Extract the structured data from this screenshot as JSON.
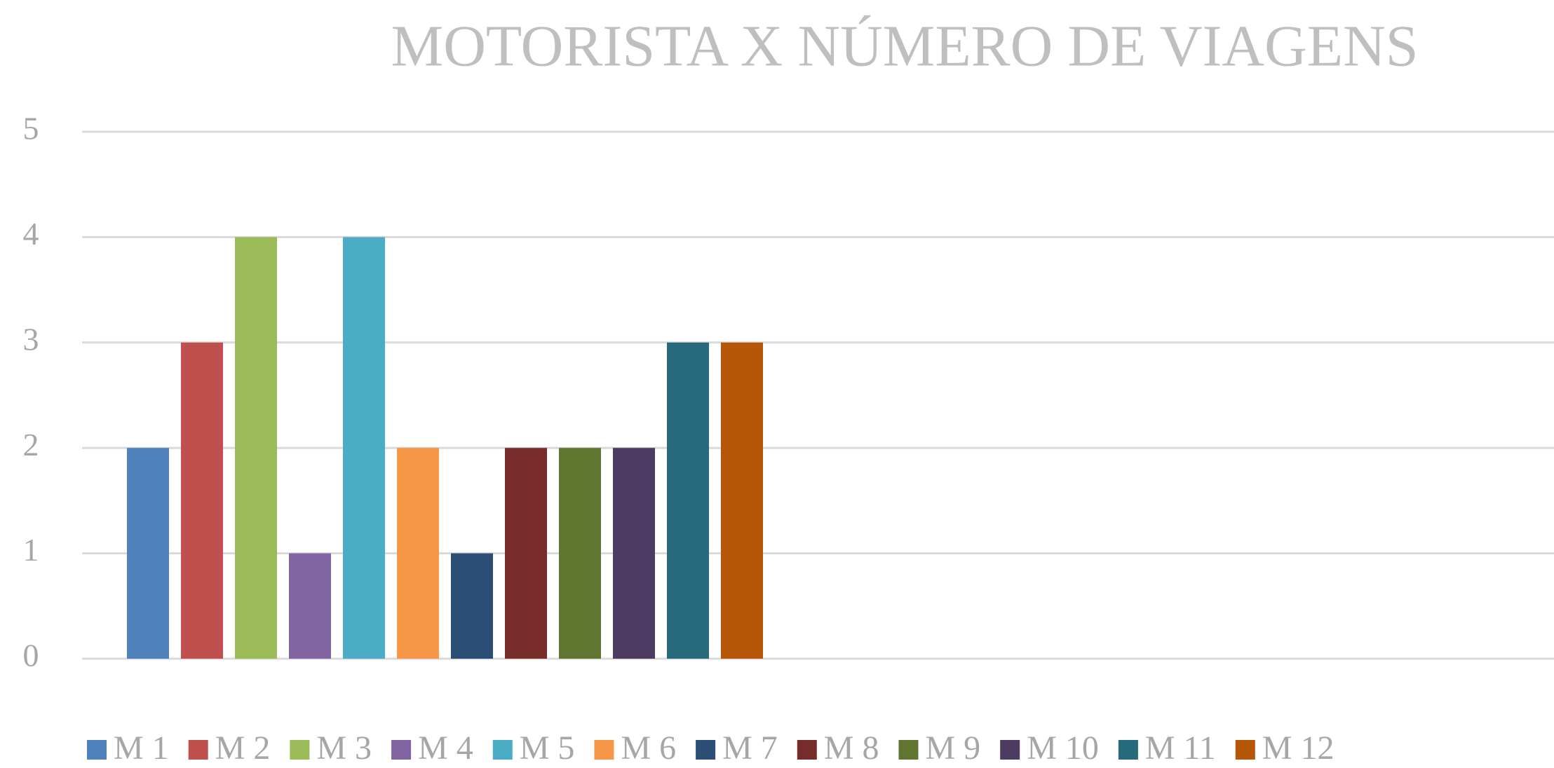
{
  "chart_data": {
    "type": "bar",
    "title": "MOTORISTA X NÚMERO DE VIAGENS",
    "series": [
      {
        "name": "M 1",
        "color": "#4f81bd",
        "values": [
          2
        ]
      },
      {
        "name": "M 2",
        "color": "#c0504d",
        "values": [
          3
        ]
      },
      {
        "name": "M 3",
        "color": "#9bbb59",
        "values": [
          4
        ]
      },
      {
        "name": "M 4",
        "color": "#8064a2",
        "values": [
          1
        ]
      },
      {
        "name": "M 5",
        "color": "#4bacc6",
        "values": [
          4
        ]
      },
      {
        "name": "M 6",
        "color": "#f79646",
        "values": [
          2
        ]
      },
      {
        "name": "M 7",
        "color": "#2c4d75",
        "values": [
          1
        ]
      },
      {
        "name": "M 8",
        "color": "#772c2a",
        "values": [
          2
        ]
      },
      {
        "name": "M 9",
        "color": "#5f7530",
        "values": [
          2
        ]
      },
      {
        "name": "M 10",
        "color": "#4d3b62",
        "values": [
          2
        ]
      },
      {
        "name": "M 11",
        "color": "#276a7c",
        "values": [
          3
        ]
      },
      {
        "name": "M 12",
        "color": "#b65708",
        "values": [
          3
        ]
      }
    ],
    "ylim": [
      0,
      5
    ],
    "yticks": [
      0,
      1,
      2,
      3,
      4,
      5
    ],
    "grid": true,
    "legend": "bottom"
  }
}
